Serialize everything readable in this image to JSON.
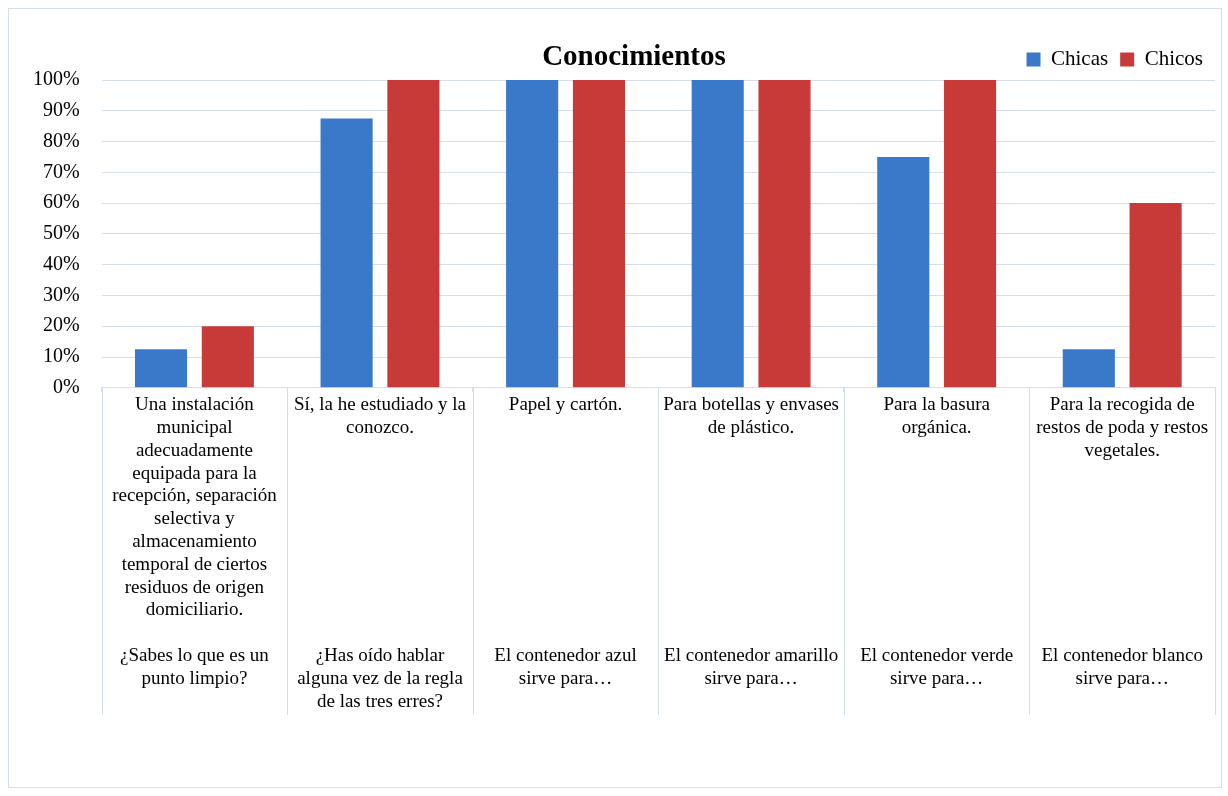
{
  "chart_data": {
    "type": "bar",
    "title": "Conocimientos",
    "categories": [
      "Una instalación municipal adecuadamente equipada para la recepción, separación selectiva y almacenamiento temporal de ciertos residuos de origen domiciliario.\n¿Sabes lo que es un punto limpio?",
      "Sí, la he estudiado y la conozco.\n¿Has oído hablar alguna vez de la regla de las tres erres?",
      "Papel y cartón.\nEl contenedor azul sirve para…",
      "Para botellas y envases de plástico.\nEl contenedor amarillo sirve para…",
      "Para la basura orgánica.\nEl contenedor verde sirve para…",
      "Para la recogida de restos de poda y restos vegetales.\nEl contenedor blanco sirve para…"
    ],
    "series": [
      {
        "name": "Chicas",
        "color": "#3a78c9",
        "values": [
          12.5,
          87.5,
          100,
          100,
          75,
          12.5
        ]
      },
      {
        "name": "Chicos",
        "color": "#c83a38",
        "values": [
          20,
          100,
          100,
          100,
          100,
          60
        ]
      }
    ],
    "ylim": [
      0,
      100
    ],
    "yticks": [
      {
        "value": 0,
        "label": "0%"
      },
      {
        "value": 10,
        "label": "10%"
      },
      {
        "value": 20,
        "label": "20%"
      },
      {
        "value": 30,
        "label": "30%"
      },
      {
        "value": 40,
        "label": "40%"
      },
      {
        "value": 50,
        "label": "50%"
      },
      {
        "value": 60,
        "label": "60%"
      },
      {
        "value": 70,
        "label": "70%"
      },
      {
        "value": 80,
        "label": "80%"
      },
      {
        "value": 90,
        "label": "90%"
      },
      {
        "value": 100,
        "label": "100%"
      }
    ],
    "grid": "y",
    "legend": "top right"
  }
}
